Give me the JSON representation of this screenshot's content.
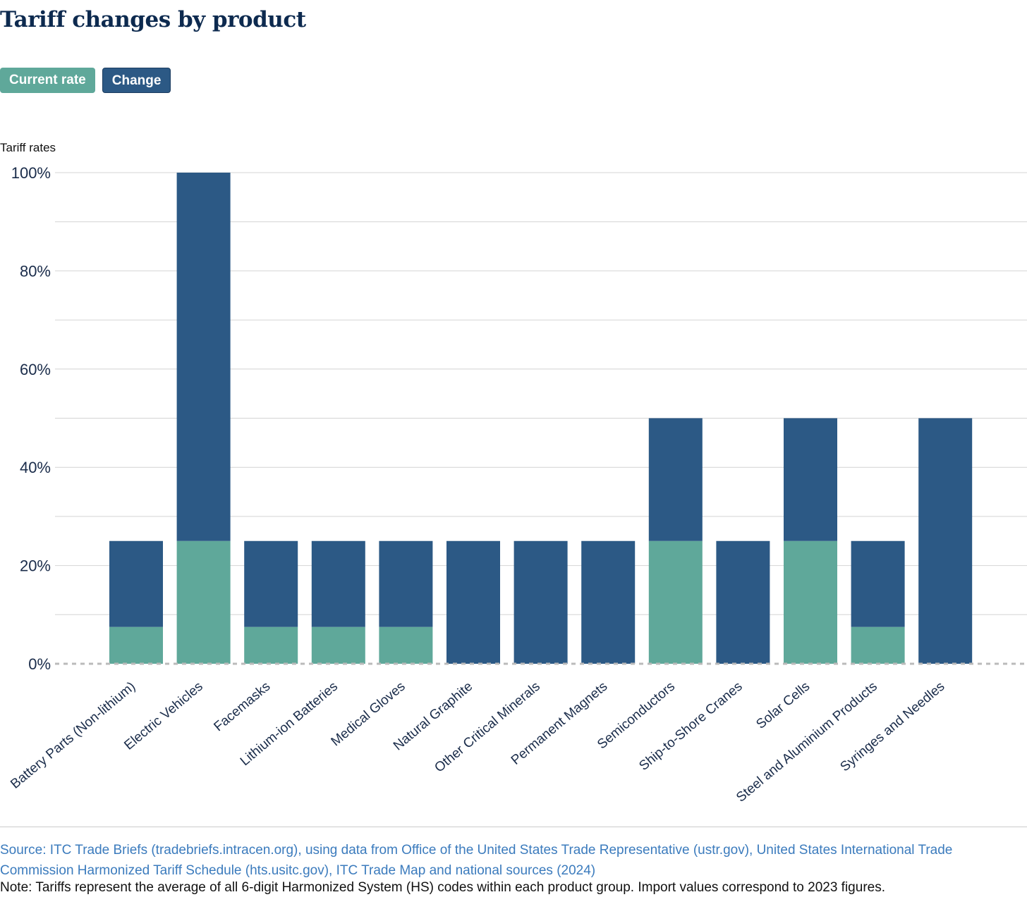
{
  "title": "Tariff changes by product",
  "legend": [
    {
      "label": "Current rate",
      "color": "#5fa89a"
    },
    {
      "label": "Change",
      "color": "#2c5985"
    }
  ],
  "chart_data": {
    "type": "bar",
    "stacked": true,
    "ylabel": "Tariff rates",
    "ylim": [
      0,
      100
    ],
    "yticks": [
      0,
      20,
      40,
      60,
      80,
      100
    ],
    "ytick_labels": [
      "0%",
      "20%",
      "40%",
      "60%",
      "80%",
      "100%"
    ],
    "grid": true,
    "categories": [
      "Battery Parts (Non-lithium)",
      "Electric Vehicles",
      "Facemasks",
      "Lithium-ion Batteries",
      "Medical Gloves",
      "Natural Graphite",
      "Other Critical Minerals",
      "Permanent Magnets",
      "Semiconductors",
      "Ship-to-Shore Cranes",
      "Solar Cells",
      "Steel and Aluminium Products",
      "Syringes and Needles"
    ],
    "series": [
      {
        "name": "Current rate",
        "color": "#5fa89a",
        "values": [
          7.5,
          25,
          7.5,
          7.5,
          7.5,
          0,
          0,
          0,
          25,
          0,
          25,
          7.5,
          0
        ]
      },
      {
        "name": "Change",
        "color": "#2c5985",
        "values": [
          17.5,
          75,
          17.5,
          17.5,
          17.5,
          25,
          25,
          25,
          25,
          25,
          25,
          17.5,
          50
        ]
      }
    ]
  },
  "source": "Source: ITC Trade Briefs (tradebriefs.intracen.org), using data from Office of the United States Trade Representative (ustr.gov), United States International Trade Commission Harmonized Tariff Schedule (hts.usitc.gov), ITC Trade Map and national sources (2024)",
  "note": "Note: Tariffs represent the average of all 6-digit Harmonized System (HS) codes within each product group. Import values correspond to 2023 figures."
}
